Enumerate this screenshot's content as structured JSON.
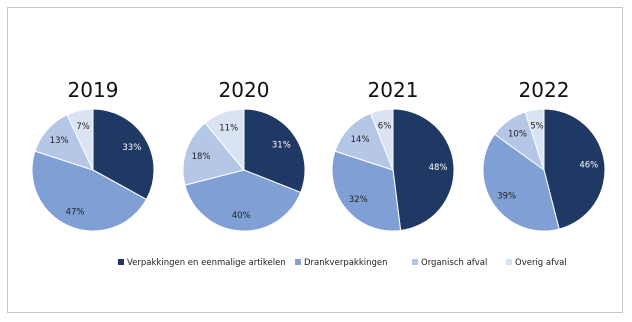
{
  "chart_data": {
    "type": "pie",
    "legend_position": "bottom",
    "categories": [
      "Verpakkingen en eenmalige artikelen",
      "Drankverpakkingen",
      "Organisch afval",
      "Overig afval"
    ],
    "colors": [
      "#1f3864",
      "#7f9fd5",
      "#b4c7e7",
      "#dae3f3"
    ],
    "label_colors": [
      "#ffffff",
      "#222222",
      "#222222",
      "#222222"
    ],
    "pies": [
      {
        "title": "2019",
        "values": [
          33,
          47,
          13,
          7
        ],
        "labels": [
          "33%",
          "47%",
          "13%",
          "7%"
        ]
      },
      {
        "title": "2020",
        "values": [
          31,
          40,
          18,
          11
        ],
        "labels": [
          "31%",
          "40%",
          "18%",
          "11%"
        ]
      },
      {
        "title": "2021",
        "values": [
          48,
          32,
          14,
          6
        ],
        "labels": [
          "48%",
          "32%",
          "14%",
          "6%"
        ]
      },
      {
        "title": "2022",
        "values": [
          46,
          39,
          10,
          5
        ],
        "labels": [
          "46%",
          "39%",
          "10%",
          "5%"
        ]
      }
    ]
  }
}
